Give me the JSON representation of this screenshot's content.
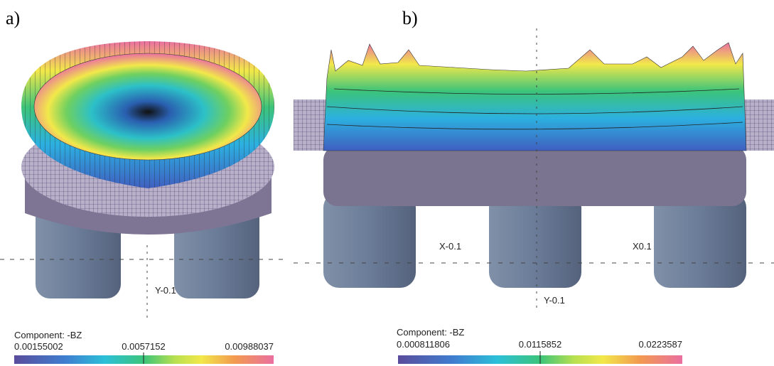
{
  "panels": [
    {
      "label": "a)",
      "axis_labels": [
        "Y-0.1"
      ],
      "colorbar": {
        "title": "Component: -BZ",
        "ticks": [
          "0.00155002",
          "0.0057152",
          "0.00988037"
        ]
      }
    },
    {
      "label": "b)",
      "axis_labels": [
        "X-0.1",
        "X0.1",
        "Y-0.1"
      ],
      "colorbar": {
        "title": "Component: -BZ",
        "ticks": [
          "0.000811806",
          "0.0115852",
          "0.0223587"
        ]
      }
    }
  ]
}
